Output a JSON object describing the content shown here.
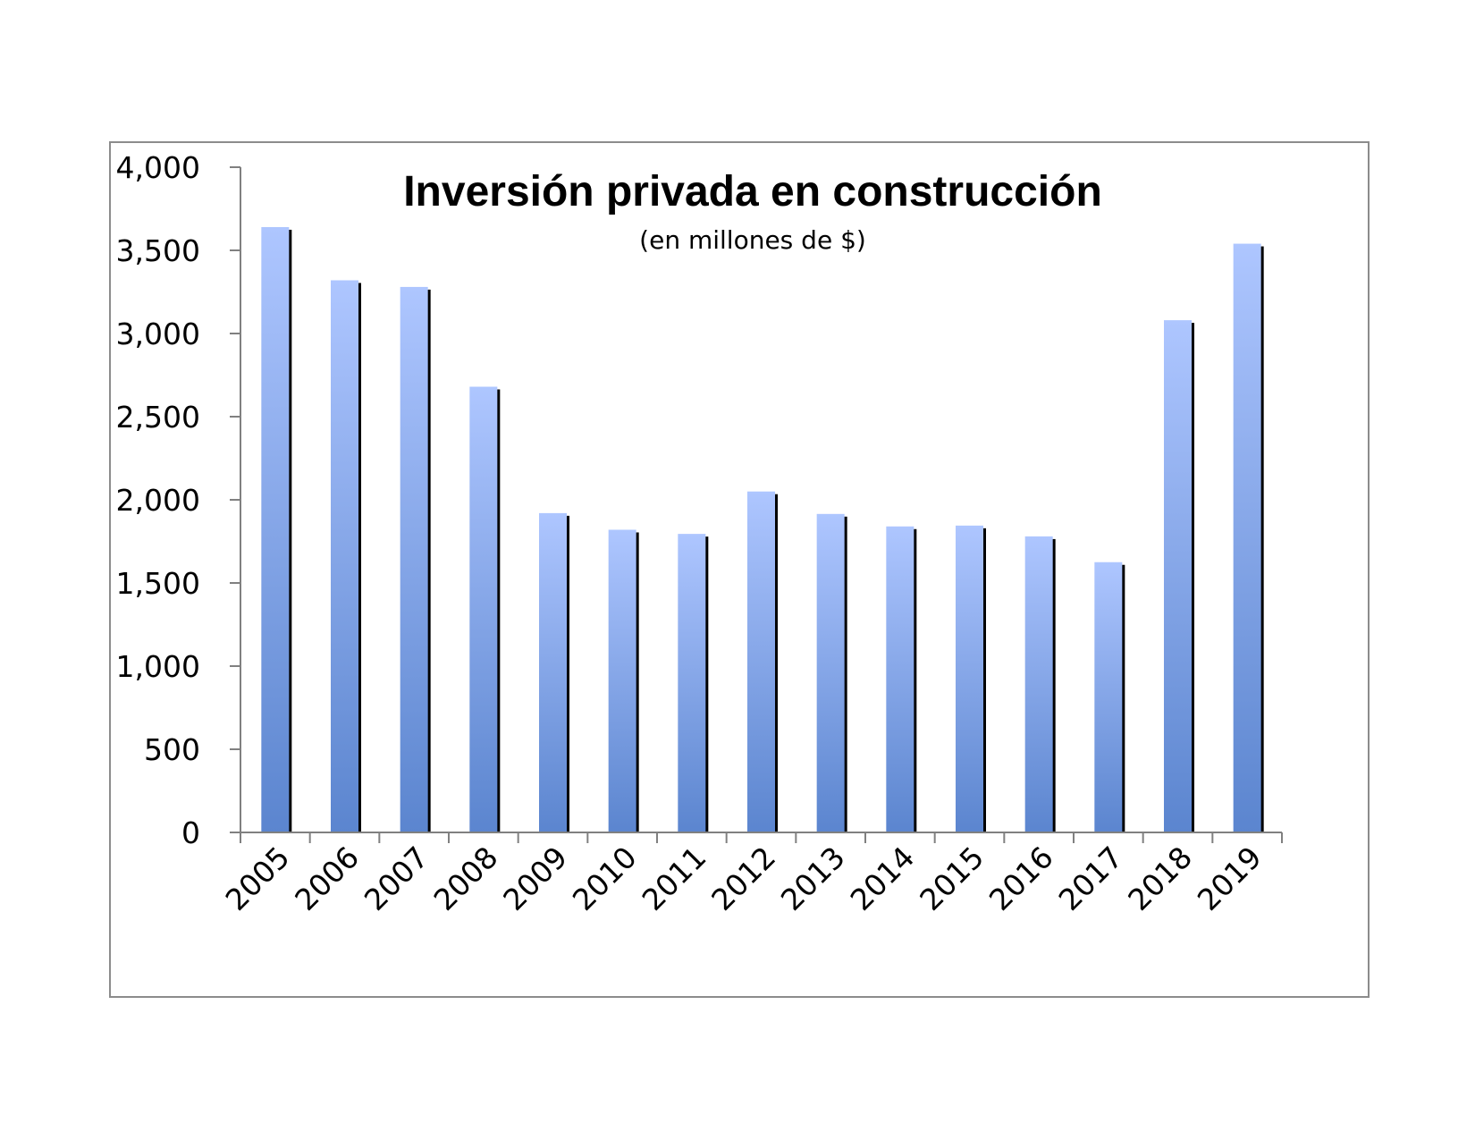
{
  "chart_data": {
    "type": "bar",
    "title": "Inversión privada en construcción",
    "subtitle": "(en millones de $)",
    "xlabel": "",
    "ylabel": "",
    "categories": [
      "2005",
      "2006",
      "2007",
      "2008",
      "2009",
      "2010",
      "2011",
      "2012",
      "2013",
      "2014",
      "2015",
      "2016",
      "2017",
      "2018",
      "2019"
    ],
    "values": [
      3640,
      3320,
      3280,
      2680,
      1920,
      1820,
      1795,
      2050,
      1915,
      1840,
      1845,
      1780,
      1625,
      3080,
      3540
    ],
    "ylim": [
      0,
      4000
    ],
    "yticks": [
      "0",
      "500",
      "1,000",
      "1,500",
      "2,000",
      "2,500",
      "3,000",
      "3,500",
      "4,000"
    ],
    "ytick_values": [
      0,
      500,
      1000,
      1500,
      2000,
      2500,
      3000,
      3500,
      4000
    ],
    "grid": false,
    "legend": "none",
    "colors": {
      "bar_top": "#aec6ff",
      "bar_bottom": "#5b85cf",
      "bar_shadow": "#000000",
      "axis": "#808080",
      "frame": "#8c8c8c"
    }
  }
}
